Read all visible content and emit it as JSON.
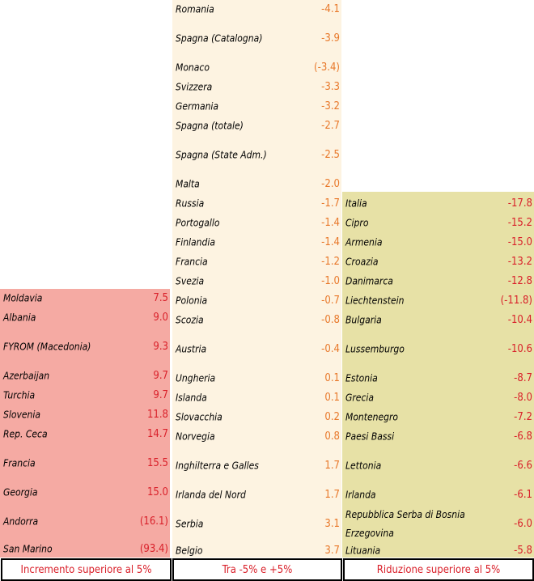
{
  "columns": {
    "increase": [
      {
        "name": "Moldavia",
        "value": "7.5"
      },
      {
        "name": "Albania",
        "value": "9.0"
      },
      {
        "name": "FYROM (Macedonia)",
        "value": "9.3"
      },
      {
        "name": "Azerbaijan",
        "value": "9.7"
      },
      {
        "name": "Turchia",
        "value": "9.7"
      },
      {
        "name": "Slovenia",
        "value": "11.8"
      },
      {
        "name": "Rep. Ceca",
        "value": "14.7"
      },
      {
        "name": "Francia",
        "value": "15.5"
      },
      {
        "name": "Georgia",
        "value": "15.0"
      },
      {
        "name": "Andorra",
        "value": "(16.1)"
      },
      {
        "name": "San Marino",
        "value": "(93.4)"
      }
    ],
    "stable": [
      {
        "name": "Romania",
        "value": "-4.1"
      },
      {
        "name": "Spagna (Catalogna)",
        "value": "-3.9"
      },
      {
        "name": "Monaco",
        "value": "(-3.4)"
      },
      {
        "name": "Svizzera",
        "value": "-3.3"
      },
      {
        "name": "Germania",
        "value": "-3.2"
      },
      {
        "name": "Spagna (totale)",
        "value": "-2.7"
      },
      {
        "name": "Spagna (State Adm.)",
        "value": "-2.5"
      },
      {
        "name": "Malta",
        "value": "-2.0"
      },
      {
        "name": "Russia",
        "value": "-1.7"
      },
      {
        "name": "Portogallo",
        "value": "-1.4"
      },
      {
        "name": "Finlandia",
        "value": "-1.4"
      },
      {
        "name": "Francia",
        "value": "-1.2"
      },
      {
        "name": "Svezia",
        "value": "-1.0"
      },
      {
        "name": "Polonia",
        "value": "-0.7"
      },
      {
        "name": "Scozia",
        "value": "-0.8"
      },
      {
        "name": "Austria",
        "value": "-0.4"
      },
      {
        "name": "Ungheria",
        "value": "0.1"
      },
      {
        "name": "Islanda",
        "value": "0.1"
      },
      {
        "name": "Slovacchia",
        "value": "0.2"
      },
      {
        "name": "Norvegia",
        "value": "0.8"
      },
      {
        "name": "Inghilterra e Galles",
        "value": "1.7"
      },
      {
        "name": "Irlanda del Nord",
        "value": "1.7"
      },
      {
        "name": "Serbia",
        "value": "3.1"
      },
      {
        "name": "Belgio",
        "value": "3.7"
      }
    ],
    "decrease": [
      {
        "name": "Italia",
        "value": "-17.8"
      },
      {
        "name": "Cipro",
        "value": "-15.2"
      },
      {
        "name": "Armenia",
        "value": "-15.0"
      },
      {
        "name": "Croazia",
        "value": "-13.2"
      },
      {
        "name": "Danimarca",
        "value": "-12.8"
      },
      {
        "name": "Liechtenstein",
        "value": "(-11.8)"
      },
      {
        "name": "Bulgaria",
        "value": "-10.4"
      },
      {
        "name": "Lussemburgo",
        "value": "-10.6"
      },
      {
        "name": "Estonia",
        "value": "-8.7"
      },
      {
        "name": "Grecia",
        "value": "-8.0"
      },
      {
        "name": "Montenegro",
        "value": "-7.2"
      },
      {
        "name": "Paesi Bassi",
        "value": "-6.8"
      },
      {
        "name": "Lettonia",
        "value": "-6.6"
      },
      {
        "name": "Irlanda",
        "value": "-6.1"
      },
      {
        "name": "Repubblica Serba di Bosnia Erzegovina",
        "value": "-6.0"
      },
      {
        "name": "Lituania",
        "value": "-5.8"
      }
    ]
  },
  "legend": {
    "increase": "Incremento superiore al 5%",
    "stable": "Tra -5% e +5%",
    "decrease": "Riduzione superiore al 5%"
  },
  "colors": {
    "increase_bg": "#f5aaa3",
    "stable_bg": "#fdf3e1",
    "decrease_bg": "#e7e1a6",
    "value_red": "#d9202a",
    "value_orange": "#e8782a"
  }
}
